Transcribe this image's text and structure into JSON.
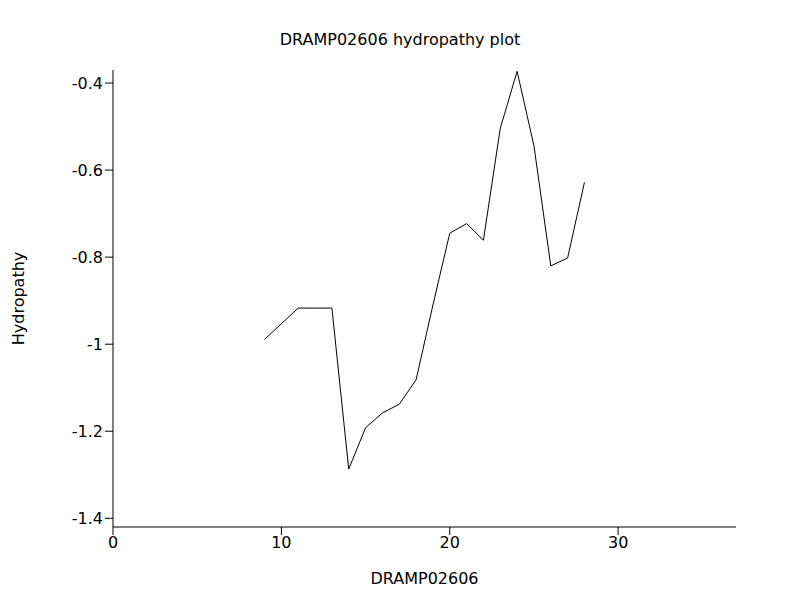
{
  "chart_data": {
    "type": "line",
    "title": "DRAMP02606 hydropathy plot",
    "x_label": "DRAMP02606",
    "y_label": "Hydropathy",
    "x": [
      9,
      10,
      11,
      12,
      13,
      14,
      15,
      16,
      17,
      18,
      19,
      20,
      21,
      22,
      23,
      24,
      25,
      26,
      27,
      28
    ],
    "values": [
      -0.989,
      -0.953,
      -0.917,
      -0.917,
      -0.917,
      -1.287,
      -1.192,
      -1.158,
      -1.138,
      -1.082,
      -0.91,
      -0.745,
      -0.723,
      -0.761,
      -0.504,
      -0.373,
      -0.544,
      -0.82,
      -0.802,
      -0.628
    ],
    "color": "#000000",
    "xlim": [
      0,
      37
    ],
    "ylim": [
      -1.42,
      -0.37
    ],
    "xticks": [
      0,
      10,
      20,
      30
    ],
    "yticks": [
      -1.4,
      -1.2,
      -1.0,
      -0.8,
      -0.6,
      -0.4
    ],
    "grid": false
  }
}
